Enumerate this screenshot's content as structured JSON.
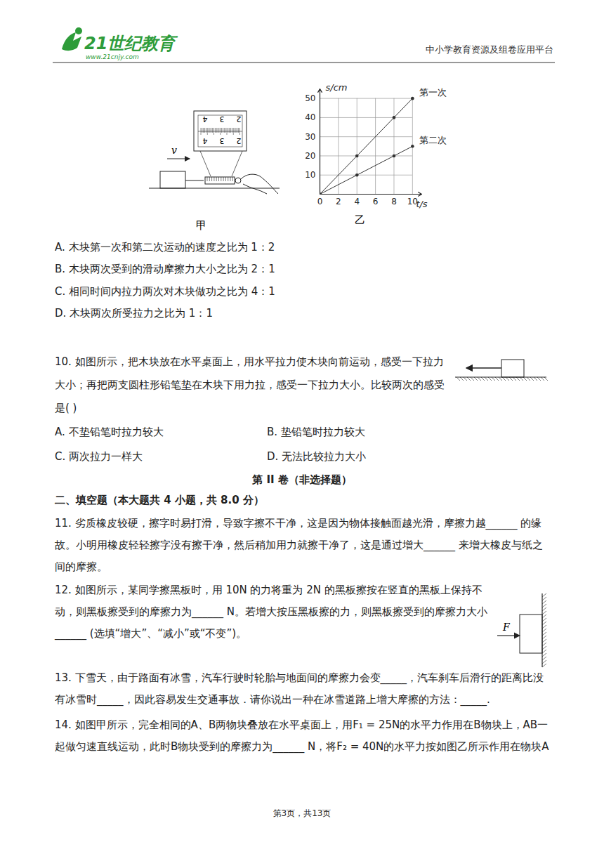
{
  "header": {
    "logo": "21世纪教育",
    "logo_url": "www.21cnjy.com",
    "platform": "中小学教育资源及组卷应用平台"
  },
  "figures": {
    "fig_jia": {
      "caption": "甲",
      "velocity_label": "v",
      "scale_numbers": [
        "4",
        "3",
        "2"
      ]
    },
    "fig_yi": {
      "caption": "乙"
    },
    "fig_q12": {
      "force_label": "F"
    }
  },
  "chart_data": {
    "type": "line",
    "x": [
      0,
      4,
      8,
      10
    ],
    "series": [
      {
        "name": "第一次",
        "values": [
          0,
          20,
          40,
          50
        ],
        "color": "#333333",
        "marker": "dot"
      },
      {
        "name": "第二次",
        "values": [
          0,
          10,
          20,
          25
        ],
        "color": "#333333",
        "marker": "dot"
      }
    ],
    "xlabel": "t/s",
    "ylabel": "s/cm",
    "xlim": [
      0,
      11
    ],
    "ylim": [
      0,
      55
    ],
    "xticks": [
      0,
      2,
      4,
      6,
      8,
      10
    ],
    "yticks": [
      10,
      20,
      30,
      40,
      50
    ],
    "grid": true
  },
  "question9_options": [
    "A. 木块第一次和第二次运动的速度之比为 1：2",
    "B. 木块两次受到的滑动摩擦力大小之比为 2：1",
    "C. 相同时间内拉力两次对木块做功之比为 4：1",
    "D. 木块两次所受拉力之比为 1：1"
  ],
  "question10": {
    "stem": "10. 如图所示，把木块放在水平桌面上，用水平拉力使木块向前运动，感受一下拉力大小；再把两支圆柱形铅笔垫在木块下用力拉，感受一下拉力大小。比较两次的感受是(    )",
    "options": [
      "A. 不垫铅笔时拉力较大",
      "B. 垫铅笔时拉力较大",
      "C. 两次拉力一样大",
      "D. 无法比较拉力大小"
    ]
  },
  "section": {
    "title": "第 II 卷（非选择题）",
    "heading": "二、填空题（本大题共 4 小题，共 8.0 分）"
  },
  "questions": [
    "11. 劣质橡皮较硬，擦字时易打滑，导致字擦不干净，这是因为物体接触面越光滑，摩擦力越______ 的缘故。小明用橡皮轻轻擦字没有擦干净，然后稍加用力就擦干净了，这是通过增大______ 来增大橡皮与纸之间的摩擦。",
    "12. 如图所示，某同学擦黑板时，用 10N 的力将重为 2N 的黑板擦按在竖直的黑板上保持不动，则黑板擦受到的摩擦力为______ N。若增大按压黑板擦的力，则黑板擦受到的摩擦力大小______ (选填“增大”、“减小”或“不变”)。",
    "13. 下雪天，由于路面有冰雪，汽车行驶时轮胎与地面间的摩擦力会变_____，汽车刹车后滑行的距离比没有冰雪时_____，因此容易发生交通事故．请你说出一种在冰雪道路上增大摩擦的方法：_____.",
    "14. 如图甲所示，完全相同的A、B两物块叠放在水平桌面上，用F₁ = 25N的水平力作用在B物块上，AB一起做匀速直线运动，此时B物块受到的摩擦力为______ N，将F₂ = 40N的水平力按如图乙所示作用在物块A"
  ],
  "footer": "第3页，共13页"
}
